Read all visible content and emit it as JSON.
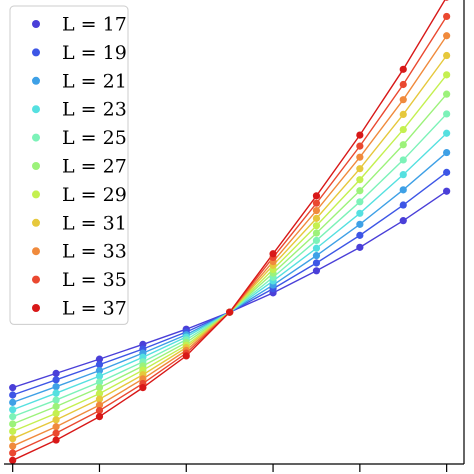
{
  "chart_data": {
    "type": "line",
    "title": "",
    "xlabel": "",
    "ylabel": "",
    "legend_position": "top-left",
    "grid": false,
    "xlim": [
      0.8,
      11.4
    ],
    "ylim": [
      0.0,
      1.0
    ],
    "x": [
      1,
      2,
      3,
      4,
      5,
      6,
      7,
      8,
      9,
      10,
      11
    ],
    "series": [
      {
        "name": "L = 17",
        "color": "#4a3fd8",
        "values": [
          0.166,
          0.197,
          0.228,
          0.26,
          0.293,
          0.33,
          0.372,
          0.42,
          0.471,
          0.529,
          0.593
        ]
      },
      {
        "name": "L = 19",
        "color": "#3d56e6",
        "values": [
          0.15,
          0.183,
          0.216,
          0.25,
          0.287,
          0.33,
          0.381,
          0.437,
          0.497,
          0.563,
          0.634
        ]
      },
      {
        "name": "L = 21",
        "color": "#3ea0e6",
        "values": [
          0.134,
          0.168,
          0.203,
          0.241,
          0.281,
          0.33,
          0.389,
          0.453,
          0.521,
          0.596,
          0.677
        ]
      },
      {
        "name": "L = 23",
        "color": "#55e0e0",
        "values": [
          0.118,
          0.154,
          0.191,
          0.232,
          0.276,
          0.33,
          0.398,
          0.469,
          0.545,
          0.629,
          0.719
        ]
      },
      {
        "name": "L = 25",
        "color": "#7cf2b8",
        "values": [
          0.103,
          0.139,
          0.178,
          0.222,
          0.27,
          0.33,
          0.406,
          0.486,
          0.57,
          0.661,
          0.761
        ]
      },
      {
        "name": "L = 27",
        "color": "#9cf27a",
        "values": [
          0.087,
          0.125,
          0.166,
          0.213,
          0.264,
          0.33,
          0.415,
          0.502,
          0.594,
          0.694,
          0.804
        ]
      },
      {
        "name": "L = 29",
        "color": "#c4f050",
        "values": [
          0.071,
          0.11,
          0.153,
          0.204,
          0.258,
          0.33,
          0.423,
          0.518,
          0.618,
          0.727,
          0.846
        ]
      },
      {
        "name": "L = 31",
        "color": "#e6c83c",
        "values": [
          0.055,
          0.096,
          0.141,
          0.194,
          0.253,
          0.33,
          0.432,
          0.534,
          0.642,
          0.76,
          0.888
        ]
      },
      {
        "name": "L = 33",
        "color": "#f08a3c",
        "values": [
          0.039,
          0.081,
          0.128,
          0.185,
          0.247,
          0.33,
          0.44,
          0.551,
          0.667,
          0.792,
          0.931
        ]
      },
      {
        "name": "L = 35",
        "color": "#ea4830",
        "values": [
          0.024,
          0.067,
          0.116,
          0.175,
          0.241,
          0.33,
          0.449,
          0.567,
          0.691,
          0.825,
          0.973
        ]
      },
      {
        "name": "L = 37",
        "color": "#d81818",
        "values": [
          0.008,
          0.052,
          0.103,
          0.166,
          0.235,
          0.33,
          0.457,
          0.583,
          0.715,
          0.858,
          1.015
        ]
      }
    ]
  }
}
